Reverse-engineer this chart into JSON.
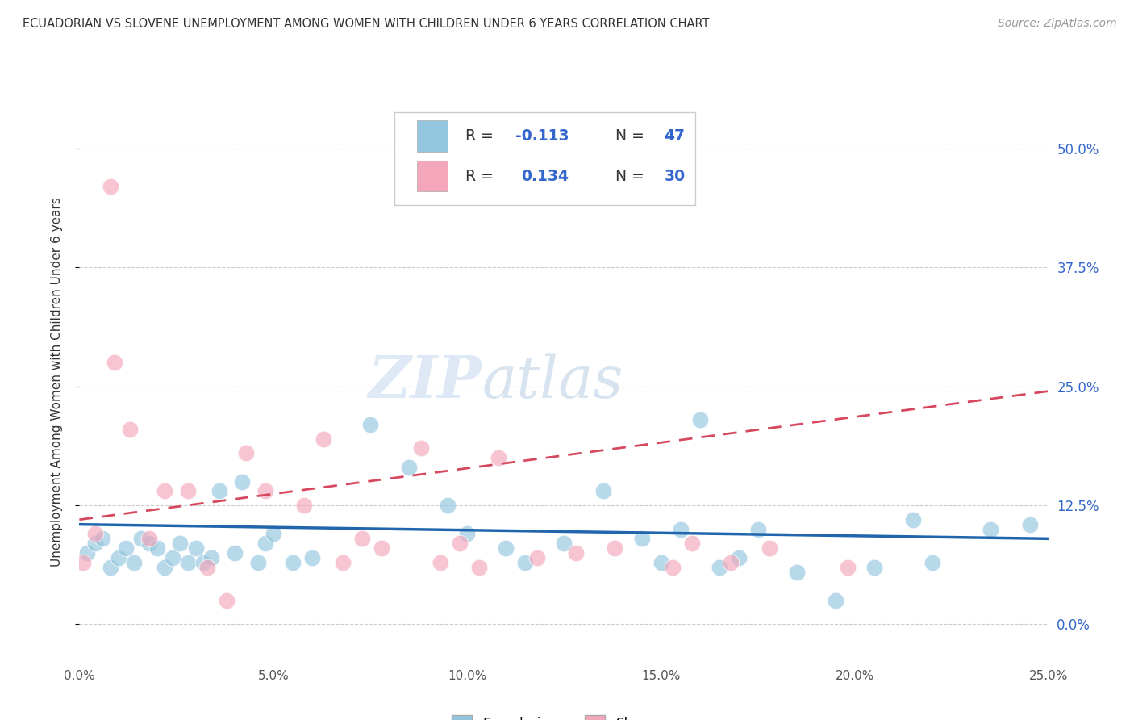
{
  "title": "ECUADORIAN VS SLOVENE UNEMPLOYMENT AMONG WOMEN WITH CHILDREN UNDER 6 YEARS CORRELATION CHART",
  "source": "Source: ZipAtlas.com",
  "ylabel": "Unemployment Among Women with Children Under 6 years",
  "xlim": [
    0.0,
    0.25
  ],
  "ylim": [
    -0.04,
    0.55
  ],
  "xticks": [
    0.0,
    0.05,
    0.1,
    0.15,
    0.2,
    0.25
  ],
  "xticklabels": [
    "0.0%",
    "5.0%",
    "10.0%",
    "15.0%",
    "20.0%",
    "25.0%"
  ],
  "ytick_positions": [
    0.0,
    0.125,
    0.25,
    0.375,
    0.5
  ],
  "yticklabels": [
    "0.0%",
    "12.5%",
    "25.0%",
    "37.5%",
    "50.0%"
  ],
  "watermark_zip": "ZIP",
  "watermark_atlas": "atlas",
  "legend_R1": "R = ",
  "legend_V1": "-0.113",
  "legend_N1_label": "N = ",
  "legend_N1_val": "47",
  "legend_R2": "R =  ",
  "legend_V2": "0.134",
  "legend_N2_label": "N = ",
  "legend_N2_val": "30",
  "blue_color": "#92c5de",
  "pink_color": "#f4a6bb",
  "blue_line_color": "#2166ac",
  "pink_line_color": "#d6485e",
  "accent_color": "#3366cc",
  "title_color": "#333333",
  "grid_color": "#cccccc",
  "blue_scatter_x": [
    0.002,
    0.004,
    0.006,
    0.008,
    0.01,
    0.012,
    0.014,
    0.016,
    0.018,
    0.02,
    0.022,
    0.024,
    0.026,
    0.028,
    0.03,
    0.032,
    0.034,
    0.036,
    0.04,
    0.042,
    0.046,
    0.048,
    0.05,
    0.055,
    0.06,
    0.075,
    0.085,
    0.095,
    0.1,
    0.11,
    0.115,
    0.125,
    0.135,
    0.145,
    0.15,
    0.155,
    0.16,
    0.165,
    0.17,
    0.175,
    0.185,
    0.195,
    0.205,
    0.215,
    0.22,
    0.235,
    0.245
  ],
  "blue_scatter_y": [
    0.075,
    0.085,
    0.09,
    0.06,
    0.07,
    0.08,
    0.065,
    0.09,
    0.085,
    0.08,
    0.06,
    0.07,
    0.085,
    0.065,
    0.08,
    0.065,
    0.07,
    0.14,
    0.075,
    0.15,
    0.065,
    0.085,
    0.095,
    0.065,
    0.07,
    0.21,
    0.165,
    0.125,
    0.095,
    0.08,
    0.065,
    0.085,
    0.14,
    0.09,
    0.065,
    0.1,
    0.215,
    0.06,
    0.07,
    0.1,
    0.055,
    0.025,
    0.06,
    0.11,
    0.065,
    0.1,
    0.105
  ],
  "pink_scatter_x": [
    0.001,
    0.004,
    0.008,
    0.009,
    0.013,
    0.018,
    0.022,
    0.028,
    0.033,
    0.038,
    0.043,
    0.048,
    0.058,
    0.063,
    0.068,
    0.073,
    0.078,
    0.088,
    0.093,
    0.098,
    0.103,
    0.108,
    0.118,
    0.128,
    0.138,
    0.153,
    0.158,
    0.168,
    0.178,
    0.198
  ],
  "pink_scatter_y": [
    0.065,
    0.095,
    0.46,
    0.275,
    0.205,
    0.09,
    0.14,
    0.14,
    0.06,
    0.025,
    0.18,
    0.14,
    0.125,
    0.195,
    0.065,
    0.09,
    0.08,
    0.185,
    0.065,
    0.085,
    0.06,
    0.175,
    0.07,
    0.075,
    0.08,
    0.06,
    0.085,
    0.065,
    0.08,
    0.06
  ],
  "blue_trend_start_y": 0.105,
  "blue_trend_end_y": 0.09,
  "pink_trend_start_y": 0.11,
  "pink_trend_end_y": 0.245,
  "background_color": "#ffffff",
  "figsize": [
    14.06,
    8.92
  ],
  "dpi": 100
}
